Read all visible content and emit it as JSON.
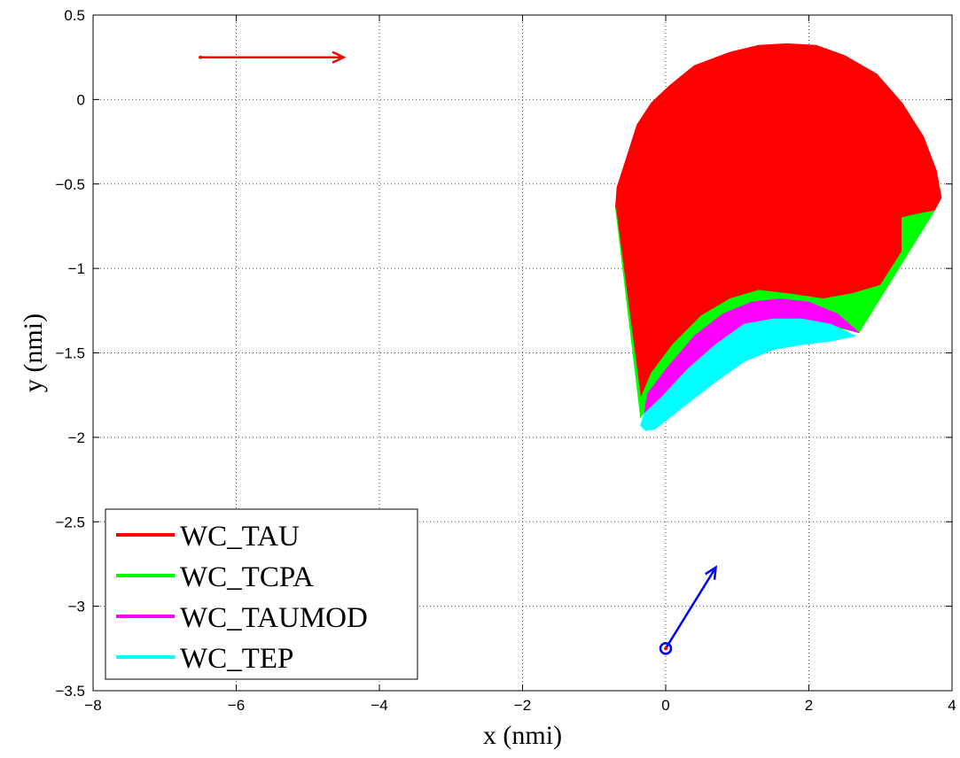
{
  "chart_data": {
    "type": "area",
    "xlabel": "x (nmi)",
    "ylabel": "y (nmi)",
    "xlim": [
      -8,
      4
    ],
    "ylim": [
      -3.5,
      0.5
    ],
    "grid": true,
    "x_ticks": [
      -8,
      -6,
      -4,
      -2,
      0,
      2,
      4
    ],
    "y_ticks": [
      0.5,
      0,
      -0.5,
      -1,
      -1.5,
      -2,
      -2.5,
      -3,
      -3.5
    ],
    "x_tick_labels": [
      "−8",
      "−6",
      "−4",
      "−2",
      "0",
      "2",
      "4"
    ],
    "y_tick_labels": [
      "0.5",
      "0",
      "−0.5",
      "−1",
      "−1.5",
      "−2",
      "−2.5",
      "−3",
      "−3.5"
    ],
    "legend_position": "bottom-left",
    "series": [
      {
        "name": "WC_TAU",
        "color": "#ff0000",
        "region": [
          [
            -0.7,
            -0.64
          ],
          [
            -0.68,
            -0.52
          ],
          [
            -0.55,
            -0.35
          ],
          [
            -0.4,
            -0.15
          ],
          [
            -0.2,
            -0.02
          ],
          [
            0.05,
            0.08
          ],
          [
            0.4,
            0.2
          ],
          [
            0.9,
            0.28
          ],
          [
            1.3,
            0.32
          ],
          [
            1.7,
            0.33
          ],
          [
            2.1,
            0.32
          ],
          [
            2.5,
            0.26
          ],
          [
            2.95,
            0.15
          ],
          [
            3.3,
            -0.02
          ],
          [
            3.6,
            -0.22
          ],
          [
            3.78,
            -0.42
          ],
          [
            3.85,
            -0.58
          ],
          [
            3.75,
            -0.66
          ],
          [
            3.5,
            -0.68
          ],
          [
            3.3,
            -0.7
          ],
          [
            3.3,
            -0.9
          ],
          [
            3.0,
            -1.1
          ],
          [
            2.6,
            -1.15
          ],
          [
            2.2,
            -1.18
          ],
          [
            1.7,
            -1.15
          ],
          [
            1.3,
            -1.13
          ],
          [
            0.9,
            -1.18
          ],
          [
            0.5,
            -1.28
          ],
          [
            0.1,
            -1.45
          ],
          [
            -0.2,
            -1.62
          ],
          [
            -0.35,
            -1.77
          ]
        ]
      },
      {
        "name": "WC_TCPA",
        "color": "#00ff00",
        "region": [
          [
            -0.7,
            -0.64
          ],
          [
            -0.35,
            -1.77
          ],
          [
            -0.2,
            -1.62
          ],
          [
            0.1,
            -1.45
          ],
          [
            0.5,
            -1.28
          ],
          [
            0.9,
            -1.18
          ],
          [
            1.3,
            -1.13
          ],
          [
            1.7,
            -1.15
          ],
          [
            2.2,
            -1.18
          ],
          [
            2.6,
            -1.15
          ],
          [
            3.0,
            -1.1
          ],
          [
            3.3,
            -0.9
          ],
          [
            3.3,
            -0.7
          ],
          [
            3.5,
            -0.68
          ],
          [
            3.75,
            -0.66
          ],
          [
            2.7,
            -1.38
          ],
          [
            2.2,
            -1.33
          ],
          [
            1.7,
            -1.28
          ],
          [
            1.2,
            -1.3
          ],
          [
            0.7,
            -1.4
          ],
          [
            0.2,
            -1.55
          ],
          [
            -0.1,
            -1.72
          ],
          [
            -0.35,
            -1.88
          ]
        ]
      },
      {
        "name": "WC_TAUMOD",
        "color": "#ff00ff",
        "region": [
          [
            -0.25,
            -1.74
          ],
          [
            0.0,
            -1.6
          ],
          [
            0.4,
            -1.4
          ],
          [
            0.8,
            -1.27
          ],
          [
            1.2,
            -1.2
          ],
          [
            1.6,
            -1.18
          ],
          [
            2.0,
            -1.2
          ],
          [
            2.4,
            -1.27
          ],
          [
            2.7,
            -1.38
          ],
          [
            2.3,
            -1.33
          ],
          [
            1.9,
            -1.3
          ],
          [
            1.5,
            -1.3
          ],
          [
            1.1,
            -1.33
          ],
          [
            0.7,
            -1.45
          ],
          [
            0.3,
            -1.6
          ],
          [
            -0.05,
            -1.76
          ],
          [
            -0.3,
            -1.86
          ]
        ]
      },
      {
        "name": "WC_TEP",
        "color": "#00ffff",
        "region": [
          [
            -0.3,
            -1.86
          ],
          [
            -0.05,
            -1.76
          ],
          [
            0.3,
            -1.6
          ],
          [
            0.7,
            -1.45
          ],
          [
            1.1,
            -1.33
          ],
          [
            1.5,
            -1.3
          ],
          [
            1.9,
            -1.3
          ],
          [
            2.3,
            -1.33
          ],
          [
            2.65,
            -1.4
          ],
          [
            2.3,
            -1.43
          ],
          [
            1.9,
            -1.45
          ],
          [
            1.5,
            -1.48
          ],
          [
            1.1,
            -1.55
          ],
          [
            0.7,
            -1.67
          ],
          [
            0.3,
            -1.8
          ],
          [
            0.0,
            -1.9
          ],
          [
            -0.15,
            -1.95
          ],
          [
            -0.28,
            -1.96
          ],
          [
            -0.35,
            -1.93
          ]
        ]
      }
    ],
    "arrows": [
      {
        "name": "intruder-arrow",
        "color": "#ff0000",
        "from": [
          -6.5,
          0.25
        ],
        "to": [
          -4.5,
          0.25
        ],
        "start_marker": "dot"
      },
      {
        "name": "ownship-arrow",
        "color": "#0000ff",
        "from": [
          0,
          -3.25
        ],
        "to": [
          0.7,
          -2.77
        ],
        "start_marker": "circle"
      }
    ]
  }
}
